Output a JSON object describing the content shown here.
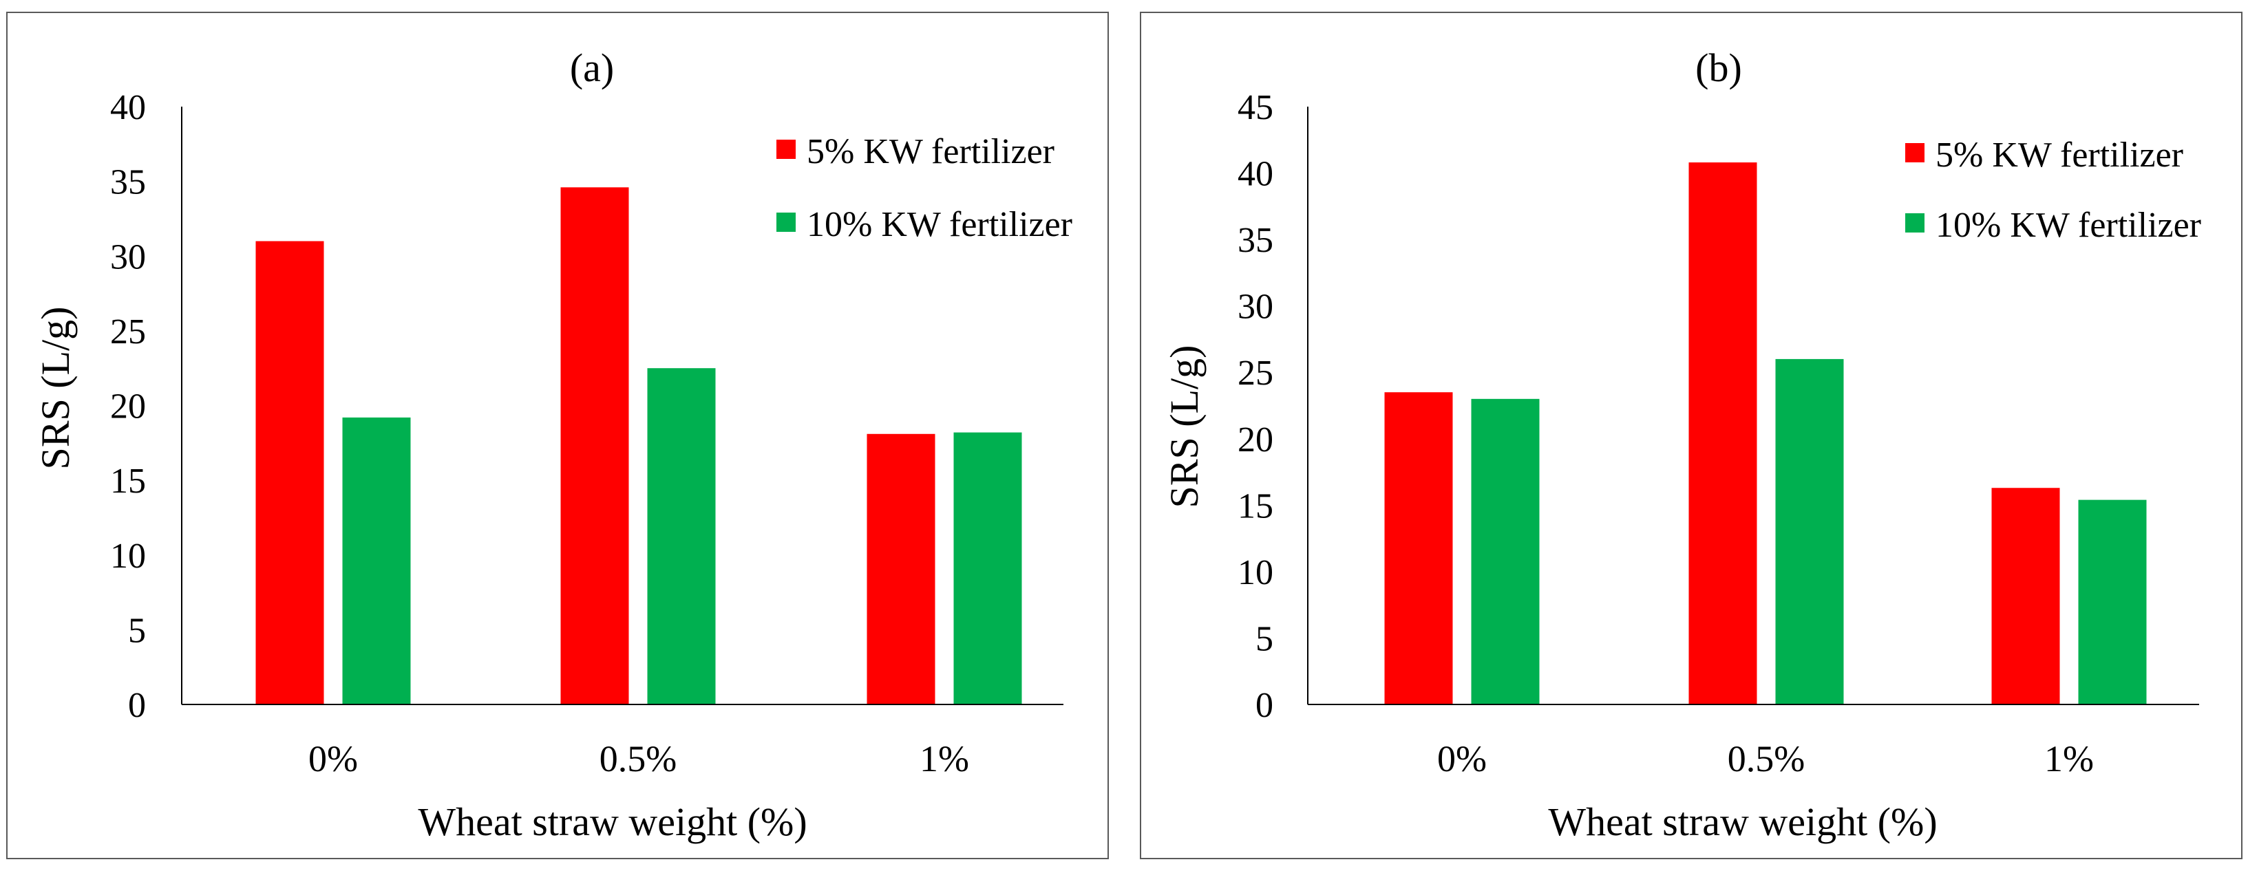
{
  "figure": {
    "background": "#ffffff",
    "frame_color": "#595959",
    "axis_color": "#000000"
  },
  "chart_data": [
    {
      "type": "bar",
      "title": "(a)",
      "xlabel": "Wheat straw weight (%)",
      "ylabel": "SRS (L/g)",
      "categories": [
        "0%",
        "0.5%",
        "1%"
      ],
      "ylim": [
        0,
        40
      ],
      "ystep": 5,
      "grid": false,
      "legend_position": "top-right",
      "series": [
        {
          "name": "5% KW fertilizer",
          "color": "#ff0000",
          "values": [
            31.0,
            34.6,
            18.1
          ]
        },
        {
          "name": "10% KW fertilizer",
          "color": "#00b050",
          "values": [
            19.2,
            22.5,
            18.2
          ]
        }
      ]
    },
    {
      "type": "bar",
      "title": "(b)",
      "xlabel": "Wheat straw weight (%)",
      "ylabel": "SRS (L/g)",
      "categories": [
        "0%",
        "0.5%",
        "1%"
      ],
      "ylim": [
        0,
        45
      ],
      "ystep": 5,
      "grid": false,
      "legend_position": "top-right",
      "series": [
        {
          "name": "5% KW fertilizer",
          "color": "#ff0000",
          "values": [
            23.5,
            40.8,
            16.3
          ]
        },
        {
          "name": "10% KW fertilizer",
          "color": "#00b050",
          "values": [
            23.0,
            26.0,
            15.4
          ]
        }
      ]
    }
  ]
}
